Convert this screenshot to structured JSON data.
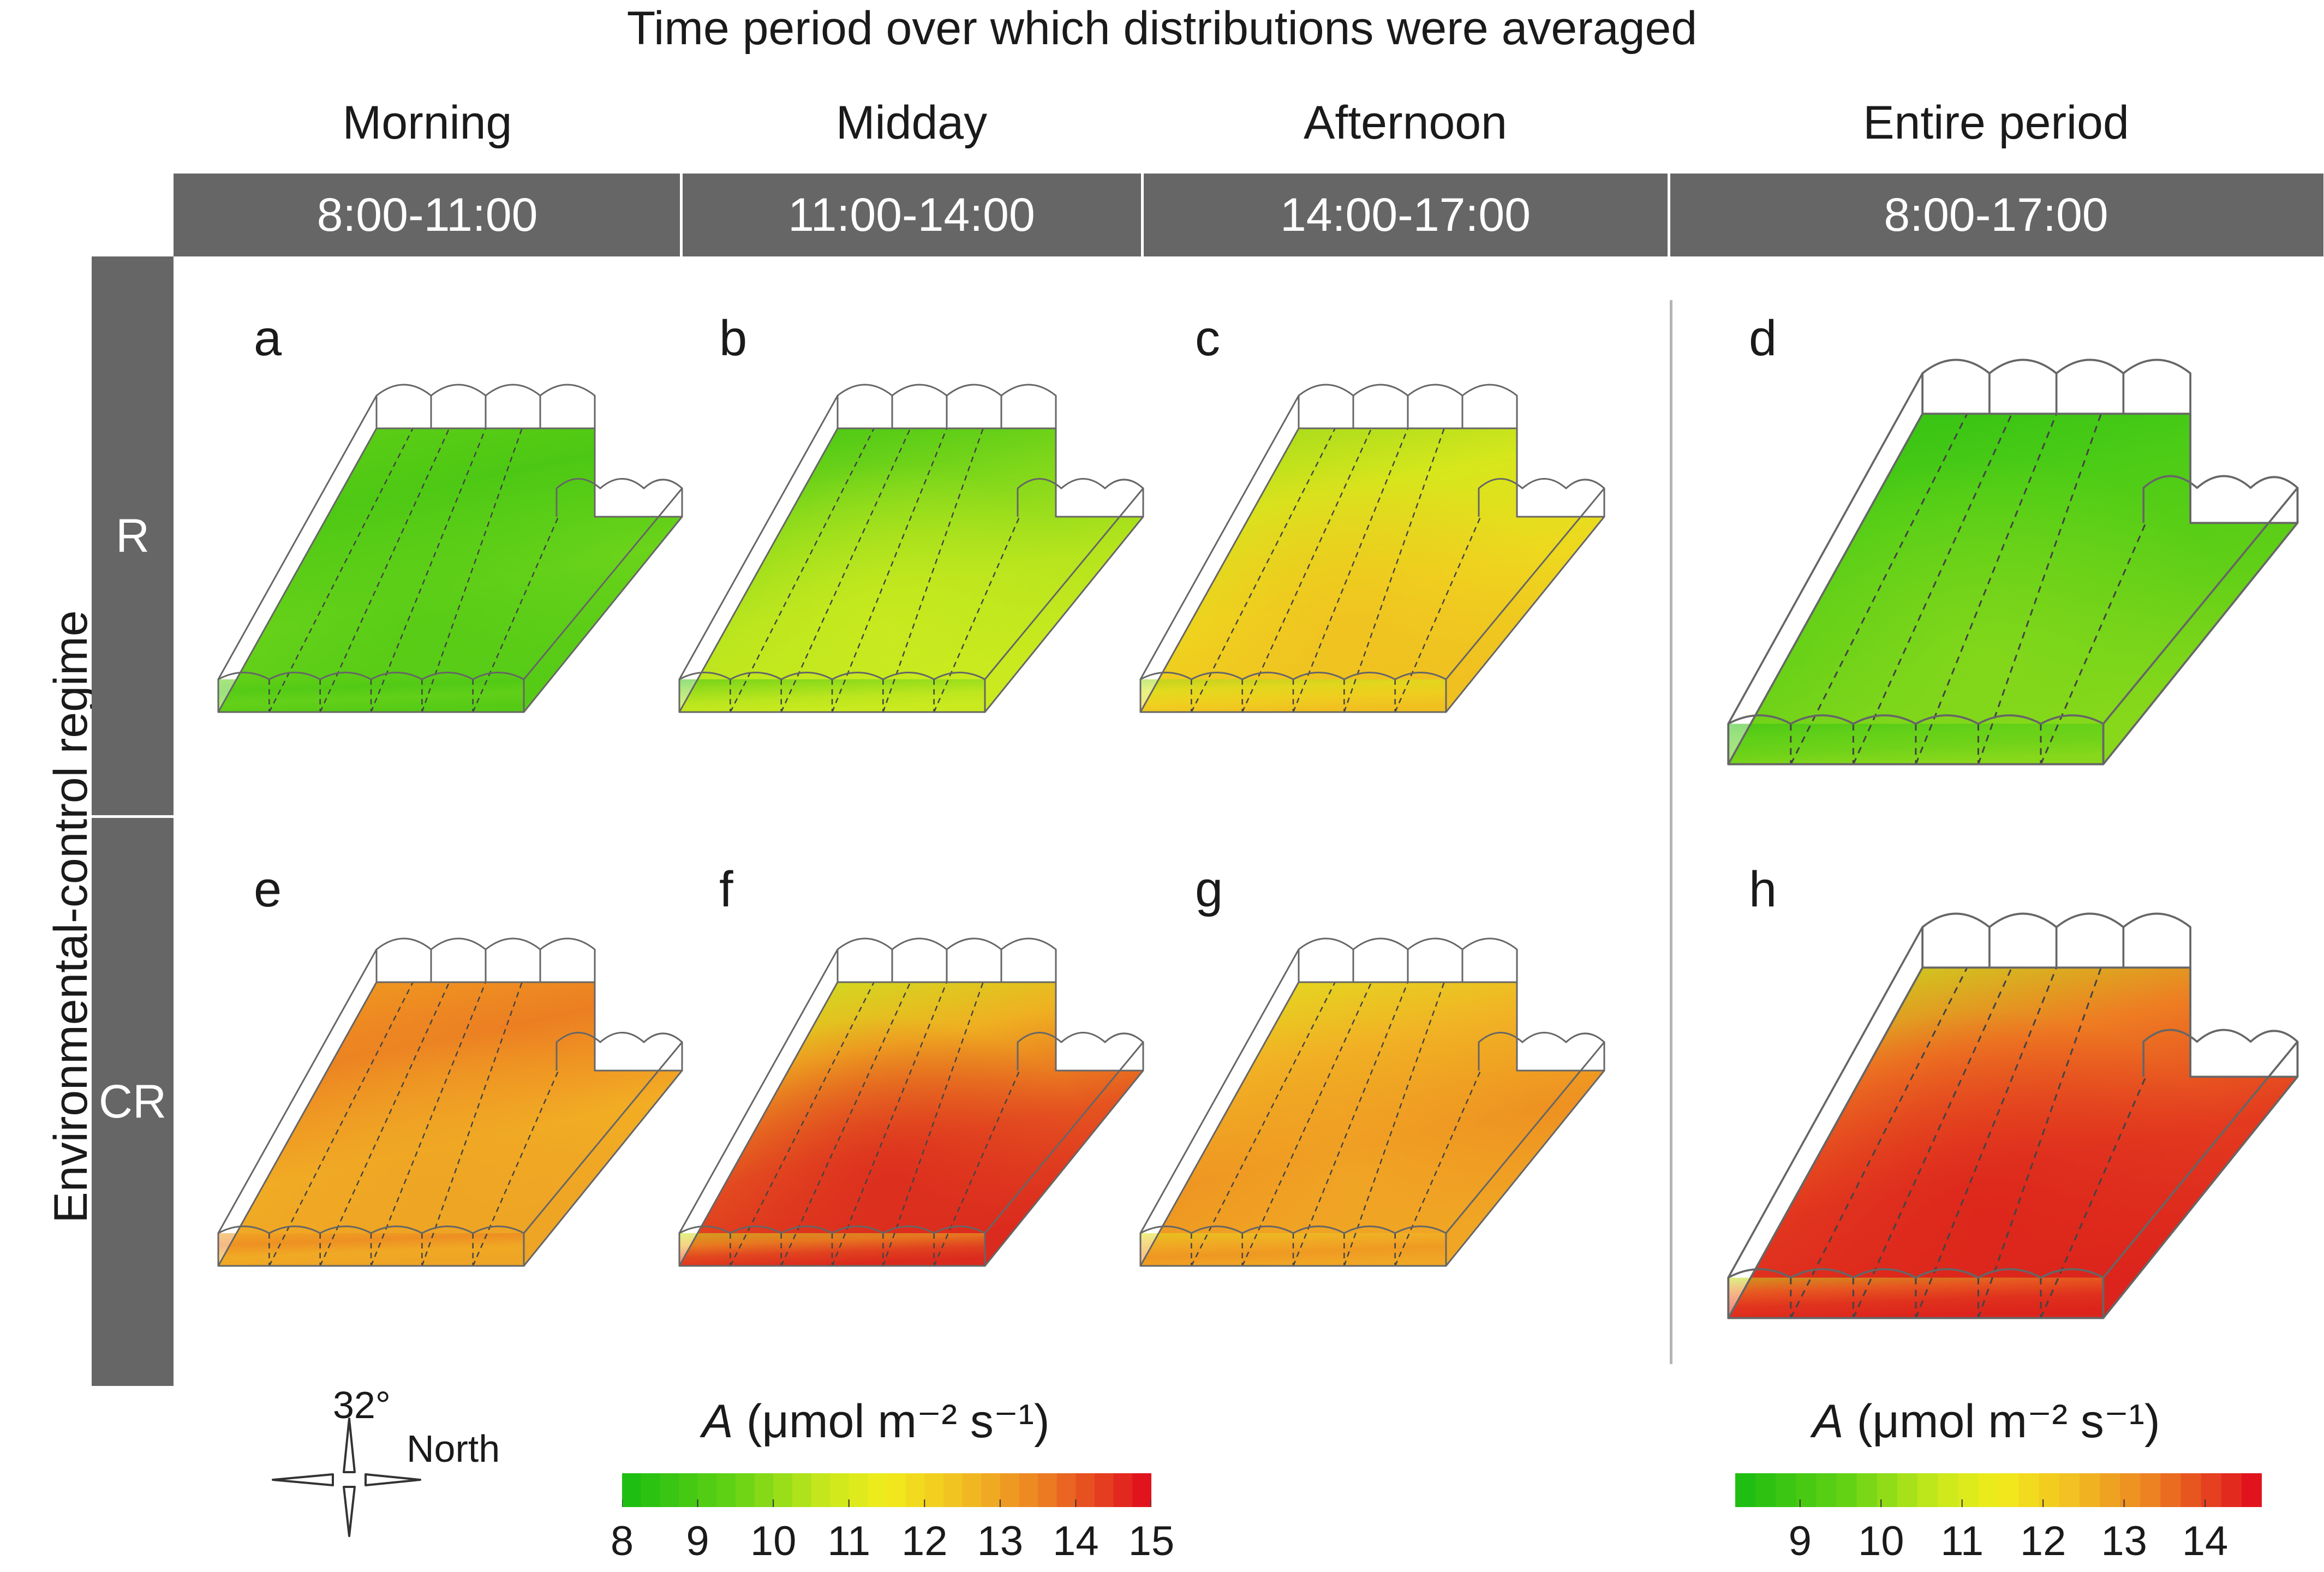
{
  "figure_title": "Time period over which distributions were averaged",
  "columns": [
    {
      "name": "Morning",
      "period": "8:00-11:00"
    },
    {
      "name": "Midday",
      "period": "11:00-14:00"
    },
    {
      "name": "Afternoon",
      "period": "14:00-17:00"
    },
    {
      "name": "Entire period",
      "period": "8:00-17:00"
    }
  ],
  "row_axis_title": "Environmental-control regime",
  "rows": [
    {
      "label": "R"
    },
    {
      "label": "CR"
    }
  ],
  "panels": [
    {
      "letter": "a",
      "row": "R",
      "period": "8:00-11:00",
      "colors": [
        "#62cf16",
        "#4cc814",
        "#6ad31a",
        "#56cb16"
      ]
    },
    {
      "letter": "b",
      "row": "R",
      "period": "11:00-14:00",
      "colors": [
        "#3cc414",
        "#7bd61a",
        "#b5e41d",
        "#caea1f"
      ]
    },
    {
      "letter": "c",
      "row": "R",
      "period": "14:00-17:00",
      "colors": [
        "#9ad81d",
        "#d6e71c",
        "#eed81e",
        "#f0c020"
      ]
    },
    {
      "letter": "d",
      "row": "R",
      "period": "8:00-17:00",
      "colors": [
        "#2fc013",
        "#4ccc16",
        "#60cf17",
        "#87d81b"
      ]
    },
    {
      "letter": "e",
      "row": "CR",
      "period": "8:00-11:00",
      "colors": [
        "#f0a020",
        "#ec7e22",
        "#f2ad24",
        "#eea424"
      ]
    },
    {
      "letter": "f",
      "row": "CR",
      "period": "11:00-14:00",
      "colors": [
        "#c8e81f",
        "#efb021",
        "#e55420",
        "#db2a1e"
      ]
    },
    {
      "letter": "g",
      "row": "CR",
      "period": "14:00-17:00",
      "colors": [
        "#dfe21e",
        "#f1b424",
        "#ee9121",
        "#f0a624"
      ]
    },
    {
      "letter": "h",
      "row": "CR",
      "period": "8:00-17:00",
      "colors": [
        "#c4e41f",
        "#ee7d22",
        "#e33b1f",
        "#dc241c"
      ]
    }
  ],
  "colorbar_left": {
    "label_prefix": "A",
    "label_units": "(μmol m⁻² s⁻¹)",
    "ticks": [
      "8",
      "9",
      "10",
      "11",
      "12",
      "13",
      "14",
      "15"
    ],
    "min": 8,
    "max": 15
  },
  "colorbar_right": {
    "label_prefix": "A",
    "label_units": "(μmol m⁻² s⁻¹)",
    "ticks": [
      "9",
      "10",
      "11",
      "12",
      "13",
      "14"
    ],
    "min": 8.2,
    "max": 14.7
  },
  "compass": {
    "angle": "32°",
    "direction": "North"
  },
  "colors": {
    "header_gray": "#666666",
    "low": "#1fbe12",
    "mid": "#f2ec1c",
    "high": "#e1141e"
  }
}
